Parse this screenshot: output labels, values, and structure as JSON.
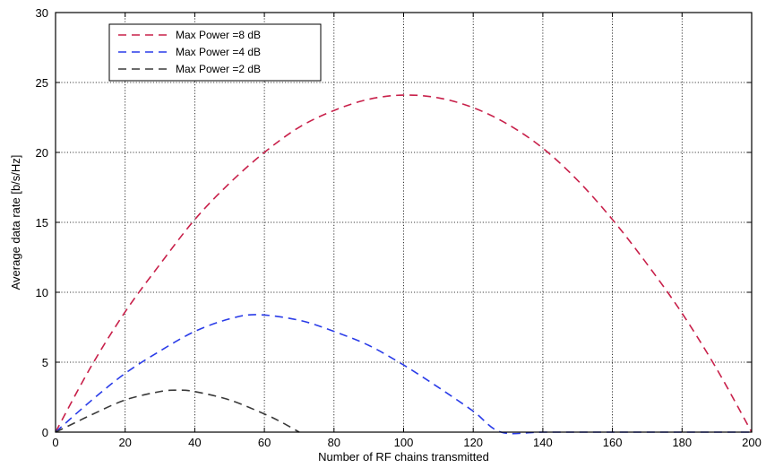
{
  "chart_data": {
    "type": "line",
    "title": "",
    "xlabel": "Number of  RF chains transmitted",
    "ylabel": "Average data rate  [b/s/Hz]",
    "xlim": [
      0,
      200
    ],
    "ylim": [
      0,
      30
    ],
    "xticks": [
      0,
      20,
      40,
      60,
      80,
      100,
      120,
      140,
      160,
      180,
      200
    ],
    "yticks": [
      0,
      5,
      10,
      15,
      20,
      25,
      30
    ],
    "grid": true,
    "legend_position": "top-left",
    "series": [
      {
        "name": "Max Power =8 dB",
        "color": "#c8204a",
        "style": "dashed",
        "points": [
          [
            0,
            0
          ],
          [
            10,
            4.6
          ],
          [
            20,
            8.6
          ],
          [
            30,
            12.0
          ],
          [
            40,
            15.2
          ],
          [
            50,
            17.8
          ],
          [
            60,
            20.0
          ],
          [
            70,
            21.8
          ],
          [
            80,
            23.0
          ],
          [
            90,
            23.8
          ],
          [
            100,
            24.1
          ],
          [
            110,
            23.9
          ],
          [
            120,
            23.2
          ],
          [
            130,
            22.0
          ],
          [
            140,
            20.3
          ],
          [
            150,
            18.0
          ],
          [
            160,
            15.2
          ],
          [
            170,
            12.0
          ],
          [
            180,
            8.5
          ],
          [
            190,
            4.5
          ],
          [
            200,
            0
          ]
        ]
      },
      {
        "name": "Max Power =4 dB",
        "color": "#2a3ce8",
        "style": "dashed",
        "points": [
          [
            0,
            0
          ],
          [
            10,
            2.2
          ],
          [
            20,
            4.2
          ],
          [
            30,
            5.8
          ],
          [
            40,
            7.2
          ],
          [
            50,
            8.1
          ],
          [
            58,
            8.4
          ],
          [
            70,
            8.0
          ],
          [
            80,
            7.2
          ],
          [
            90,
            6.2
          ],
          [
            100,
            4.8
          ],
          [
            110,
            3.2
          ],
          [
            120,
            1.5
          ],
          [
            128,
            0
          ],
          [
            140,
            0
          ],
          [
            160,
            0
          ],
          [
            180,
            0
          ],
          [
            200,
            0
          ]
        ]
      },
      {
        "name": "Max Power =2 dB",
        "color": "#3a3a3a",
        "style": "dashed",
        "points": [
          [
            0,
            0
          ],
          [
            5,
            0.6
          ],
          [
            10,
            1.2
          ],
          [
            20,
            2.3
          ],
          [
            30,
            2.9
          ],
          [
            35,
            3.0
          ],
          [
            40,
            2.9
          ],
          [
            50,
            2.3
          ],
          [
            60,
            1.3
          ],
          [
            65,
            0.7
          ],
          [
            70,
            0
          ]
        ]
      }
    ]
  }
}
